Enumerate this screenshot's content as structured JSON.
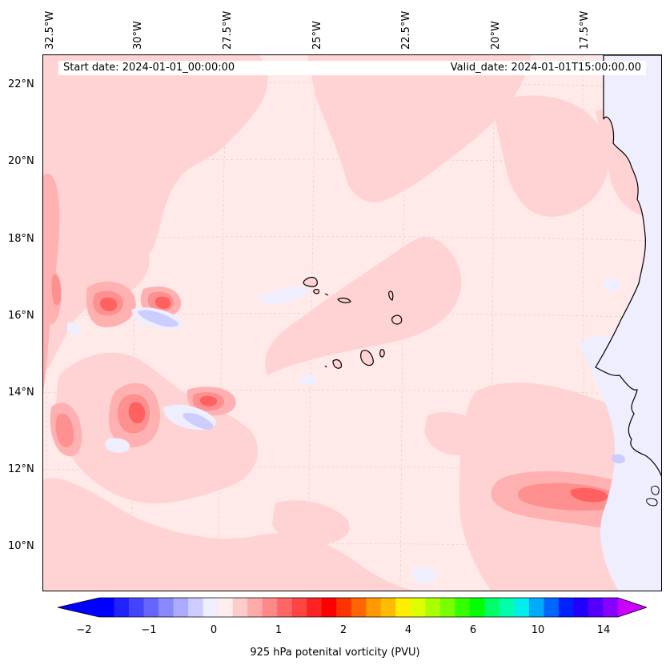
{
  "map": {
    "info": {
      "start_date": "Start date: 2024-01-01_00:00:00",
      "valid_date": "Valid_date: 2024-01-01T15:00:00.00"
    },
    "longitude_labels": [
      "32.5°W",
      "30°W",
      "27.5°W",
      "25°W",
      "22.5°W",
      "20°W",
      "17.5°W"
    ],
    "latitude_labels": [
      "22°N",
      "20°N",
      "18°N",
      "16°N",
      "14°N",
      "12°N",
      "10°N"
    ],
    "colors": {
      "background_level": "#ffe9e9",
      "light_pink": "#ffd3d3",
      "pink": "#ffb1b1",
      "salmon": "#ff9090",
      "red": "#ff6060",
      "light_blue": "#eeeeff",
      "pale_blue": "#ccccff",
      "coastline": "#000000"
    }
  },
  "colorbar": {
    "label": "925 hPa potenital vorticity (PVU)",
    "tick_labels": [
      "−2",
      "−1",
      "0",
      "1",
      "2",
      "4",
      "6",
      "10",
      "14"
    ],
    "colors": [
      "#0000ff",
      "#2222ff",
      "#4444ff",
      "#6666ff",
      "#8888ff",
      "#aaaaff",
      "#ccccff",
      "#eeeeff",
      "#ffeeee",
      "#ffcccc",
      "#ffaaaa",
      "#ff8888",
      "#ff6666",
      "#ff4444",
      "#ff2222",
      "#ff0000",
      "#ff3300",
      "#ff6600",
      "#ff9900",
      "#ffbb00",
      "#ffee00",
      "#ddff00",
      "#aaff00",
      "#77ff00",
      "#33ff00",
      "#00ff00",
      "#00ff66",
      "#00ffaa",
      "#00eeee",
      "#00aaff",
      "#0066ff",
      "#0022ff",
      "#2200ff",
      "#5500ff",
      "#8800ff"
    ],
    "extend_low_color": "#0000ff",
    "extend_high_color": "#cc00ff"
  }
}
